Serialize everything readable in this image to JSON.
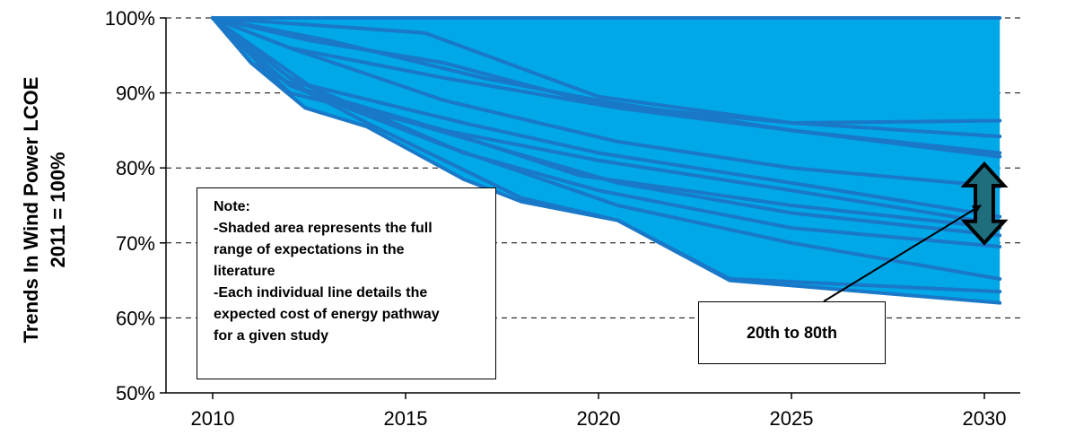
{
  "chart_data": {
    "type": "line",
    "ylabel_lines": [
      "Trends In Wind Power LCOE",
      "2011 = 100%"
    ],
    "xlim": [
      2010,
      2030
    ],
    "ylim": [
      50,
      100
    ],
    "x_ticks": [
      2010,
      2015,
      2020,
      2025,
      2030
    ],
    "y_ticks": [
      50,
      60,
      70,
      80,
      90,
      100
    ],
    "x_tick_labels": [
      "2010",
      "2015",
      "2020",
      "2025",
      "2030"
    ],
    "y_tick_labels": [
      "50%",
      "60%",
      "70%",
      "80%",
      "90%",
      "100%"
    ],
    "grid": "horizontal dashed",
    "fill_color": "#00a8e8",
    "line_color": "#1a78c8",
    "range_upper": {
      "x": [
        2010,
        2030
      ],
      "y": [
        100,
        100
      ]
    },
    "range_lower": {
      "x": [
        2010,
        2011,
        2012.4,
        2014,
        2016.5,
        2018,
        2020.5,
        2023.4,
        2030.4
      ],
      "y": [
        100,
        94,
        88,
        85.5,
        78.5,
        75.5,
        73,
        65,
        62
      ]
    },
    "series": [
      {
        "x": [
          2010,
          2030.4
        ],
        "y": [
          100,
          100
        ]
      },
      {
        "x": [
          2010,
          2015.5,
          2020,
          2025,
          2030.4
        ],
        "y": [
          100,
          98,
          89.5,
          86,
          86.3
        ]
      },
      {
        "x": [
          2010,
          2012.5,
          2016,
          2020,
          2025,
          2030.4
        ],
        "y": [
          100,
          97,
          94,
          88.5,
          86,
          84.2
        ]
      },
      {
        "x": [
          2010,
          2013,
          2017,
          2020,
          2025,
          2030.4
        ],
        "y": [
          100,
          97,
          92,
          89,
          85,
          82
        ]
      },
      {
        "x": [
          2010,
          2012,
          2016,
          2020.5,
          2025,
          2030.4
        ],
        "y": [
          100,
          96,
          92,
          88,
          85,
          81.5
        ]
      },
      {
        "x": [
          2010,
          2012,
          2016,
          2020.5,
          2025,
          2030.4
        ],
        "y": [
          100,
          96,
          89,
          83.5,
          80,
          77.5
        ]
      },
      {
        "x": [
          2010,
          2012.5,
          2016.5,
          2020,
          2025,
          2030.4
        ],
        "y": [
          100,
          91,
          86,
          82,
          78,
          73.5
        ]
      },
      {
        "x": [
          2010,
          2012,
          2016,
          2020,
          2025,
          2030.4
        ],
        "y": [
          100,
          90,
          85,
          81,
          77,
          72.5
        ]
      },
      {
        "x": [
          2010,
          2012,
          2016,
          2019.5,
          2025,
          2030.4
        ],
        "y": [
          100,
          91,
          85,
          79,
          75,
          72
        ]
      },
      {
        "x": [
          2010,
          2012.5,
          2016.5,
          2020.5,
          2025,
          2030.4
        ],
        "y": [
          100,
          90,
          84,
          78,
          74,
          71
        ]
      },
      {
        "x": [
          2010,
          2012,
          2016.5,
          2020,
          2025,
          2030.4
        ],
        "y": [
          100,
          92,
          82,
          77,
          72,
          69.5
        ]
      },
      {
        "x": [
          2010,
          2012,
          2016,
          2020.5,
          2025,
          2030.4
        ],
        "y": [
          100,
          91,
          83,
          75,
          70,
          65.2
        ]
      },
      {
        "x": [
          2010,
          2011,
          2014,
          2018,
          2020.5,
          2023.4,
          2030.4
        ],
        "y": [
          100,
          94,
          86,
          76,
          73,
          65.2,
          63.5
        ]
      },
      {
        "x": [
          2010,
          2011,
          2012.4,
          2014,
          2016.5,
          2018,
          2020.5,
          2023.4,
          2030.4
        ],
        "y": [
          100,
          94,
          88,
          85.5,
          78.5,
          75.5,
          73,
          65,
          62
        ]
      }
    ],
    "band": {
      "label": "20th to 80th",
      "x": 2030,
      "y_low": 70,
      "y_high": 80.5,
      "color": "#1f6e7e"
    },
    "annotations": {
      "note_lines": [
        "Note:",
        "-Shaded area represents the full",
        "range of expectations in the",
        "literature",
        "-Each individual line details the",
        "expected cost  of energy pathway",
        "for a given study"
      ],
      "callout": "20th to 80th"
    }
  }
}
